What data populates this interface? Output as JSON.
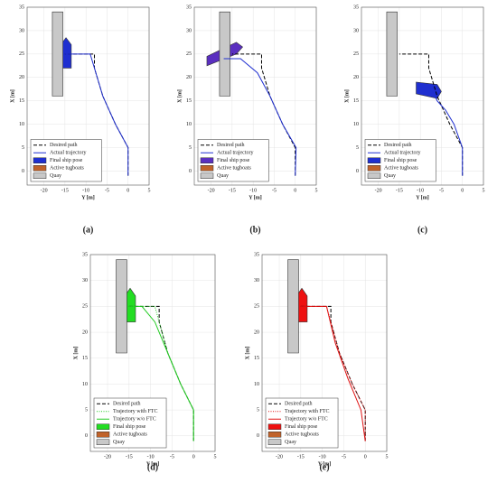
{
  "chart_data": [
    {
      "type": "line",
      "panel_label": "(a)",
      "xlabel": "Y [m]",
      "ylabel": "X [m]",
      "xlim": [
        -24,
        5
      ],
      "ylim": [
        -3,
        35
      ],
      "xticks": [
        -20,
        -15,
        -10,
        -5,
        0,
        5
      ],
      "yticks": [
        0,
        5,
        10,
        15,
        20,
        25,
        30,
        35
      ],
      "grid": true,
      "series": [
        {
          "name": "Desired path",
          "color": "#000000",
          "style": "dashed",
          "x": [
            0,
            0,
            -3,
            -6,
            -8,
            -8,
            -15
          ],
          "values": [
            -1,
            5,
            10,
            16,
            22,
            25,
            25
          ]
        },
        {
          "name": "Actual trajectory",
          "color": "#1f2fd0",
          "style": "solid",
          "x": [
            0,
            0,
            -3,
            -6,
            -8,
            -9,
            -15
          ],
          "values": [
            -1,
            5,
            10,
            16,
            22,
            25,
            25
          ]
        }
      ],
      "patches": [
        {
          "name": "Final ship pose",
          "color": "#1f2fd0",
          "x": [
            -16,
            -13.5,
            -13.5,
            -14.75,
            -16
          ],
          "values": [
            22,
            22,
            27,
            28.5,
            27
          ]
        },
        {
          "name": "Active tugboats",
          "color": "#c0622a"
        },
        {
          "name": "Quay",
          "color": "#c8c8c8",
          "x": [
            -18,
            -15.5,
            -15.5,
            -18
          ],
          "values": [
            16,
            16,
            34,
            34
          ]
        }
      ]
    },
    {
      "type": "line",
      "panel_label": "(b)",
      "xlabel": "Y [m]",
      "ylabel": "X [m]",
      "xlim": [
        -24,
        5
      ],
      "ylim": [
        -3,
        35
      ],
      "xticks": [
        -20,
        -15,
        -10,
        -5,
        0,
        5
      ],
      "yticks": [
        0,
        5,
        10,
        15,
        20,
        25,
        30,
        35
      ],
      "grid": true,
      "series": [
        {
          "name": "Desired path",
          "color": "#000000",
          "style": "dashed",
          "x": [
            0,
            0,
            -3,
            -6,
            -8,
            -8,
            -15
          ],
          "values": [
            -1,
            5,
            10,
            16,
            22,
            25,
            25
          ]
        },
        {
          "name": "Actual trajectory",
          "color": "#1f2fd0",
          "style": "solid",
          "x": [
            0,
            0.2,
            -3,
            -6,
            -9,
            -13,
            -17
          ],
          "values": [
            -1,
            5,
            10,
            16,
            21,
            24,
            24
          ]
        }
      ],
      "patches": [
        {
          "name": "Final ship pose",
          "color": "#5a2fc0",
          "x": [
            -21,
            -14,
            -12.5,
            -14,
            -21
          ],
          "values": [
            22.5,
            25,
            26.5,
            27.5,
            24.5
          ]
        },
        {
          "name": "Active tugboats",
          "color": "#c0622a"
        },
        {
          "name": "Quay",
          "color": "#c8c8c8",
          "x": [
            -18,
            -15.5,
            -15.5,
            -18
          ],
          "values": [
            16,
            16,
            34,
            34
          ]
        }
      ]
    },
    {
      "type": "line",
      "panel_label": "(c)",
      "xlabel": "Y [m]",
      "ylabel": "X [m]",
      "xlim": [
        -24,
        5
      ],
      "ylim": [
        -3,
        35
      ],
      "xticks": [
        -20,
        -15,
        -10,
        -5,
        0,
        5
      ],
      "yticks": [
        0,
        5,
        10,
        15,
        20,
        25,
        30,
        35
      ],
      "grid": true,
      "series": [
        {
          "name": "Desired path",
          "color": "#000000",
          "style": "dashed",
          "x": [
            0,
            0,
            -3,
            -6,
            -8,
            -8,
            -15
          ],
          "values": [
            -1,
            5,
            10,
            16,
            22,
            25,
            25
          ]
        },
        {
          "name": "Actual trajectory",
          "color": "#1f2fd0",
          "style": "solid",
          "x": [
            0,
            0,
            -2,
            -4,
            -6,
            -7
          ],
          "values": [
            -1,
            5,
            10,
            13,
            15,
            17
          ]
        }
      ],
      "patches": [
        {
          "name": "Final ship pose",
          "color": "#1f2fd0",
          "x": [
            -11,
            -6,
            -5,
            -6,
            -11
          ],
          "values": [
            16.5,
            15.5,
            17,
            18.5,
            19
          ]
        },
        {
          "name": "Active tugboats",
          "color": "#c0622a"
        },
        {
          "name": "Quay",
          "color": "#c8c8c8",
          "x": [
            -18,
            -15.5,
            -15.5,
            -18
          ],
          "values": [
            16,
            16,
            34,
            34
          ]
        }
      ]
    },
    {
      "type": "line",
      "panel_label": "(d)",
      "xlabel": "Y [m]",
      "ylabel": "X [m]",
      "xlim": [
        -24,
        5
      ],
      "ylim": [
        -3,
        35
      ],
      "xticks": [
        -20,
        -15,
        -10,
        -5,
        0,
        5
      ],
      "yticks": [
        0,
        5,
        10,
        15,
        20,
        25,
        30,
        35
      ],
      "grid": true,
      "series": [
        {
          "name": "Desired path",
          "color": "#000000",
          "style": "dashed",
          "x": [
            0,
            0,
            -3,
            -6,
            -8,
            -8,
            -15
          ],
          "values": [
            -1,
            5,
            10,
            16,
            22,
            25,
            25
          ]
        },
        {
          "name": "Trajectory with FTC",
          "color": "#22cc22",
          "style": "dotted",
          "x": [
            0,
            0,
            -3,
            -6,
            -8,
            -9,
            -15
          ],
          "values": [
            -1,
            5,
            10,
            16,
            22,
            25,
            25
          ]
        },
        {
          "name": "Trajectory w/o FTC",
          "color": "#22cc22",
          "style": "solid",
          "x": [
            0,
            0,
            -3,
            -6,
            -9,
            -12,
            -15
          ],
          "values": [
            -1,
            5,
            10,
            16,
            22,
            25,
            25
          ]
        }
      ],
      "patches": [
        {
          "name": "Final ship pose",
          "color": "#22dd22",
          "x": [
            -16,
            -13.5,
            -13.5,
            -14.75,
            -16
          ],
          "values": [
            22,
            22,
            27,
            28.5,
            27
          ]
        },
        {
          "name": "Active tugboats",
          "color": "#c0622a"
        },
        {
          "name": "Quay",
          "color": "#c8c8c8",
          "x": [
            -18,
            -15.5,
            -15.5,
            -18
          ],
          "values": [
            16,
            16,
            34,
            34
          ]
        }
      ]
    },
    {
      "type": "line",
      "panel_label": "(e)",
      "xlabel": "Y [m]",
      "ylabel": "X [m]",
      "xlim": [
        -24,
        5
      ],
      "ylim": [
        -3,
        35
      ],
      "xticks": [
        -20,
        -15,
        -10,
        -5,
        0,
        5
      ],
      "yticks": [
        0,
        5,
        10,
        15,
        20,
        25,
        30,
        35
      ],
      "grid": true,
      "series": [
        {
          "name": "Desired path",
          "color": "#000000",
          "style": "dashed",
          "x": [
            0,
            0,
            -3,
            -6,
            -8,
            -8,
            -15
          ],
          "values": [
            -1,
            5,
            10,
            16,
            22,
            25,
            25
          ]
        },
        {
          "name": "Trajectory with FTC",
          "color": "#e01010",
          "style": "dotted",
          "x": [
            0,
            0,
            -3,
            -6,
            -8,
            -9,
            -15
          ],
          "values": [
            -1,
            5,
            10,
            16,
            22,
            25,
            25
          ]
        },
        {
          "name": "Trajectory w/o FTC",
          "color": "#e01010",
          "style": "solid",
          "x": [
            0,
            -1,
            -4,
            -7,
            -9,
            -15
          ],
          "values": [
            -1,
            5,
            11,
            18,
            25,
            25
          ]
        }
      ],
      "patches": [
        {
          "name": "Final ship pose",
          "color": "#ee1111",
          "x": [
            -16,
            -13.5,
            -13.5,
            -14.75,
            -16
          ],
          "values": [
            22,
            22,
            27,
            28.5,
            27
          ]
        },
        {
          "name": "Active tugboats",
          "color": "#c0622a"
        },
        {
          "name": "Quay",
          "color": "#c8c8c8",
          "x": [
            -18,
            -15.5,
            -15.5,
            -18
          ],
          "values": [
            16,
            16,
            34,
            34
          ]
        }
      ]
    }
  ]
}
